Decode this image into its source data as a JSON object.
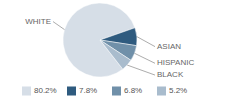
{
  "chart_data": {
    "type": "pie",
    "categories": [
      "WHITE",
      "ASIAN",
      "HISPANIC",
      "BLACK"
    ],
    "values": [
      80.2,
      7.8,
      6.8,
      5.2
    ],
    "value_labels": [
      "80.2%",
      "7.8%",
      "6.8%",
      "5.2%"
    ],
    "colors": [
      "#d6dee7",
      "#2f5b7f",
      "#7090a9",
      "#a9bccd"
    ],
    "legend": "bottom"
  }
}
